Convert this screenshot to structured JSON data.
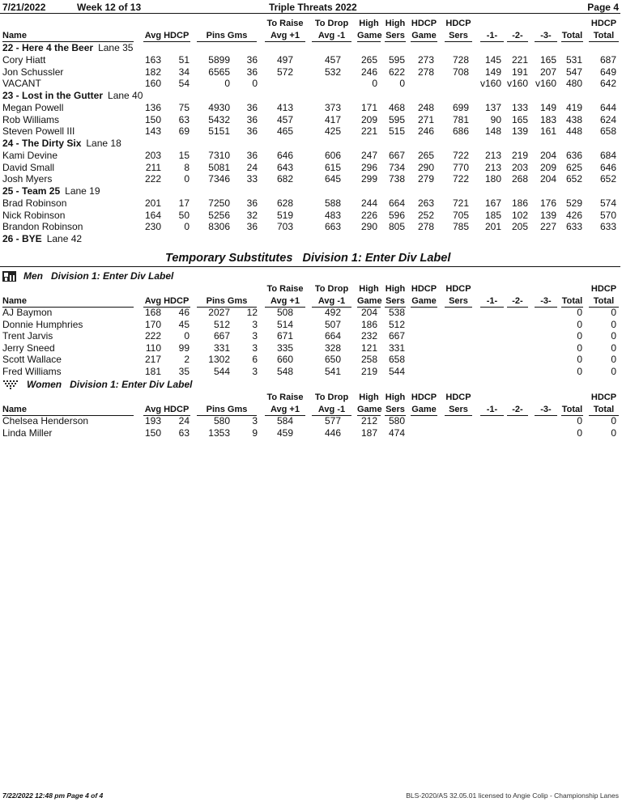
{
  "report": {
    "date": "7/21/2022",
    "week": "Week 12 of 13",
    "title": "Triple Threats 2022",
    "page": "Page 4"
  },
  "headers": {
    "line1": [
      "",
      "",
      "",
      "To Raise",
      "To Drop",
      "High",
      "High",
      "HDCP",
      "HDCP",
      "",
      "",
      "",
      "",
      "HDCP"
    ],
    "line2": [
      "Name",
      "Avg HDCP",
      "Pins  Gms",
      "Avg +1",
      "Avg -1",
      "Game",
      "Sers",
      "Game",
      "Sers",
      "-1-",
      "-2-",
      "-3-",
      "Total",
      "Total"
    ]
  },
  "teams": [
    {
      "heading": "22 - Here 4 the Beer",
      "lane": "Lane 35",
      "bowlers": [
        {
          "name": "Cory Hiatt",
          "values": [
            "163",
            "51",
            "5899",
            "36",
            "497",
            "457",
            "265",
            "595",
            "273",
            "728",
            "145",
            "221",
            "165",
            "531",
            "687"
          ]
        },
        {
          "name": "Jon Schussler",
          "values": [
            "182",
            "34",
            "6565",
            "36",
            "572",
            "532",
            "246",
            "622",
            "278",
            "708",
            "149",
            "191",
            "207",
            "547",
            "649"
          ]
        },
        {
          "name": "VACANT",
          "values": [
            "160",
            "54",
            "0",
            "0",
            "",
            "",
            "0",
            "0",
            "",
            "",
            "v160",
            "v160",
            "v160",
            "480",
            "642"
          ]
        }
      ]
    },
    {
      "heading": "23 - Lost in the Gutter",
      "lane": "Lane 40",
      "bowlers": [
        {
          "name": "Megan Powell",
          "values": [
            "136",
            "75",
            "4930",
            "36",
            "413",
            "373",
            "171",
            "468",
            "248",
            "699",
            "137",
            "133",
            "149",
            "419",
            "644"
          ]
        },
        {
          "name": "Rob Williams",
          "values": [
            "150",
            "63",
            "5432",
            "36",
            "457",
            "417",
            "209",
            "595",
            "271",
            "781",
            "90",
            "165",
            "183",
            "438",
            "624"
          ]
        },
        {
          "name": "Steven Powell III",
          "values": [
            "143",
            "69",
            "5151",
            "36",
            "465",
            "425",
            "221",
            "515",
            "246",
            "686",
            "148",
            "139",
            "161",
            "448",
            "658"
          ]
        }
      ]
    },
    {
      "heading": "24 - The Dirty Six",
      "lane": "Lane 18",
      "bowlers": [
        {
          "name": "Kami Devine",
          "values": [
            "203",
            "15",
            "7310",
            "36",
            "646",
            "606",
            "247",
            "667",
            "265",
            "722",
            "213",
            "219",
            "204",
            "636",
            "684"
          ]
        },
        {
          "name": "David Small",
          "values": [
            "211",
            "8",
            "5081",
            "24",
            "643",
            "615",
            "296",
            "734",
            "290",
            "770",
            "213",
            "203",
            "209",
            "625",
            "646"
          ]
        },
        {
          "name": "Josh Myers",
          "values": [
            "222",
            "0",
            "7346",
            "33",
            "682",
            "645",
            "299",
            "738",
            "279",
            "722",
            "180",
            "268",
            "204",
            "652",
            "652"
          ]
        }
      ]
    },
    {
      "heading": "25 - Team 25",
      "lane": "Lane 19",
      "bowlers": [
        {
          "name": "Brad Robinson",
          "values": [
            "201",
            "17",
            "7250",
            "36",
            "628",
            "588",
            "244",
            "664",
            "263",
            "721",
            "167",
            "186",
            "176",
            "529",
            "574"
          ]
        },
        {
          "name": "Nick Robinson",
          "values": [
            "164",
            "50",
            "5256",
            "32",
            "519",
            "483",
            "226",
            "596",
            "252",
            "705",
            "185",
            "102",
            "139",
            "426",
            "570"
          ]
        },
        {
          "name": "Brandon Robinson",
          "values": [
            "230",
            "0",
            "8306",
            "36",
            "703",
            "663",
            "290",
            "805",
            "278",
            "785",
            "201",
            "205",
            "227",
            "633",
            "633"
          ]
        }
      ]
    },
    {
      "heading": "26 - BYE",
      "lane": "Lane 42",
      "bowlers": []
    }
  ],
  "substitutes": {
    "title": "Temporary Substitutes   Division 1: Enter Div Label",
    "sections": [
      {
        "icon": "men-icon",
        "label": "Men   Division 1: Enter Div Label",
        "bowlers": [
          {
            "name": "AJ Baymon",
            "values": [
              "168",
              "46",
              "2027",
              "12",
              "508",
              "492",
              "204",
              "538",
              "",
              "",
              "",
              "",
              "",
              "0",
              "0"
            ]
          },
          {
            "name": "Donnie Humphries",
            "values": [
              "170",
              "45",
              "512",
              "3",
              "514",
              "507",
              "186",
              "512",
              "",
              "",
              "",
              "",
              "",
              "0",
              "0"
            ]
          },
          {
            "name": "Trent Jarvis",
            "values": [
              "222",
              "0",
              "667",
              "3",
              "671",
              "664",
              "232",
              "667",
              "",
              "",
              "",
              "",
              "",
              "0",
              "0"
            ]
          },
          {
            "name": "Jerry Sneed",
            "values": [
              "110",
              "99",
              "331",
              "3",
              "335",
              "328",
              "121",
              "331",
              "",
              "",
              "",
              "",
              "",
              "0",
              "0"
            ]
          },
          {
            "name": "Scott Wallace",
            "values": [
              "217",
              "2",
              "1302",
              "6",
              "660",
              "650",
              "258",
              "658",
              "",
              "",
              "",
              "",
              "",
              "0",
              "0"
            ]
          },
          {
            "name": "Fred Williams",
            "values": [
              "181",
              "35",
              "544",
              "3",
              "548",
              "541",
              "219",
              "544",
              "",
              "",
              "",
              "",
              "",
              "0",
              "0"
            ]
          }
        ]
      },
      {
        "icon": "women-icon",
        "label": "Women   Division 1: Enter Div Label",
        "bowlers": [
          {
            "name": "Chelsea Henderson",
            "values": [
              "193",
              "24",
              "580",
              "3",
              "584",
              "577",
              "212",
              "580",
              "",
              "",
              "",
              "",
              "",
              "0",
              "0"
            ]
          },
          {
            "name": "Linda Miller",
            "values": [
              "150",
              "63",
              "1353",
              "9",
              "459",
              "446",
              "187",
              "474",
              "",
              "",
              "",
              "",
              "",
              "0",
              "0"
            ]
          }
        ]
      }
    ]
  },
  "footer": {
    "left": "7/22/2022  12:48 pm  Page 4 of 4",
    "right": "BLS-2020/AS 32.05.01 licensed to Angie Colip - Championship Lanes"
  }
}
